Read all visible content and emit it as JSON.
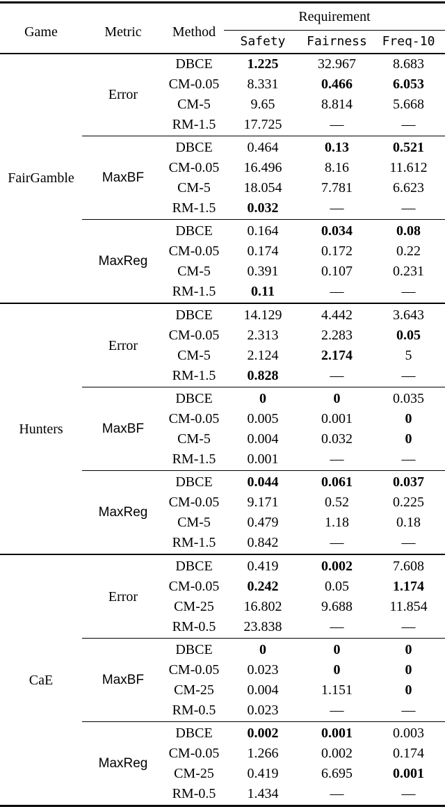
{
  "header": {
    "game": "Game",
    "metric": "Metric",
    "method": "Method",
    "requirement": "Requirement",
    "requirements": [
      "Safety",
      "Fairness",
      "Freq-10"
    ]
  },
  "sections": [
    {
      "game": "FairGamble",
      "blocks": [
        {
          "metric": "Error",
          "metric_font": "serif",
          "rows": [
            {
              "method": "DBCE",
              "values": [
                {
                  "text": "1.225",
                  "bold": true
                },
                {
                  "text": "32.967",
                  "bold": false
                },
                {
                  "text": "8.683",
                  "bold": false
                }
              ]
            },
            {
              "method": "CM-0.05",
              "values": [
                {
                  "text": "8.331",
                  "bold": false
                },
                {
                  "text": "0.466",
                  "bold": true
                },
                {
                  "text": "6.053",
                  "bold": true
                }
              ]
            },
            {
              "method": "CM-5",
              "values": [
                {
                  "text": "9.65",
                  "bold": false
                },
                {
                  "text": "8.814",
                  "bold": false
                },
                {
                  "text": "5.668",
                  "bold": false
                }
              ]
            },
            {
              "method": "RM-1.5",
              "values": [
                {
                  "text": "17.725",
                  "bold": false
                },
                {
                  "text": "—",
                  "bold": false
                },
                {
                  "text": "—",
                  "bold": false
                }
              ]
            }
          ]
        },
        {
          "metric": "MaxBF",
          "metric_font": "sans",
          "rows": [
            {
              "method": "DBCE",
              "values": [
                {
                  "text": "0.464",
                  "bold": false
                },
                {
                  "text": "0.13",
                  "bold": true
                },
                {
                  "text": "0.521",
                  "bold": true
                }
              ]
            },
            {
              "method": "CM-0.05",
              "values": [
                {
                  "text": "16.496",
                  "bold": false
                },
                {
                  "text": "8.16",
                  "bold": false
                },
                {
                  "text": "11.612",
                  "bold": false
                }
              ]
            },
            {
              "method": "CM-5",
              "values": [
                {
                  "text": "18.054",
                  "bold": false
                },
                {
                  "text": "7.781",
                  "bold": false
                },
                {
                  "text": "6.623",
                  "bold": false
                }
              ]
            },
            {
              "method": "RM-1.5",
              "values": [
                {
                  "text": "0.032",
                  "bold": true
                },
                {
                  "text": "—",
                  "bold": false
                },
                {
                  "text": "—",
                  "bold": false
                }
              ]
            }
          ]
        },
        {
          "metric": "MaxReg",
          "metric_font": "sans",
          "rows": [
            {
              "method": "DBCE",
              "values": [
                {
                  "text": "0.164",
                  "bold": false
                },
                {
                  "text": "0.034",
                  "bold": true
                },
                {
                  "text": "0.08",
                  "bold": true
                }
              ]
            },
            {
              "method": "CM-0.05",
              "values": [
                {
                  "text": "0.174",
                  "bold": false
                },
                {
                  "text": "0.172",
                  "bold": false
                },
                {
                  "text": "0.22",
                  "bold": false
                }
              ]
            },
            {
              "method": "CM-5",
              "values": [
                {
                  "text": "0.391",
                  "bold": false
                },
                {
                  "text": "0.107",
                  "bold": false
                },
                {
                  "text": "0.231",
                  "bold": false
                }
              ]
            },
            {
              "method": "RM-1.5",
              "values": [
                {
                  "text": "0.11",
                  "bold": true
                },
                {
                  "text": "—",
                  "bold": false
                },
                {
                  "text": "—",
                  "bold": false
                }
              ]
            }
          ]
        }
      ]
    },
    {
      "game": "Hunters",
      "blocks": [
        {
          "metric": "Error",
          "metric_font": "serif",
          "rows": [
            {
              "method": "DBCE",
              "values": [
                {
                  "text": "14.129",
                  "bold": false
                },
                {
                  "text": "4.442",
                  "bold": false
                },
                {
                  "text": "3.643",
                  "bold": false
                }
              ]
            },
            {
              "method": "CM-0.05",
              "values": [
                {
                  "text": "2.313",
                  "bold": false
                },
                {
                  "text": "2.283",
                  "bold": false
                },
                {
                  "text": "0.05",
                  "bold": true
                }
              ]
            },
            {
              "method": "CM-5",
              "values": [
                {
                  "text": "2.124",
                  "bold": false
                },
                {
                  "text": "2.174",
                  "bold": true
                },
                {
                  "text": "5",
                  "bold": false
                }
              ]
            },
            {
              "method": "RM-1.5",
              "values": [
                {
                  "text": "0.828",
                  "bold": true
                },
                {
                  "text": "—",
                  "bold": false
                },
                {
                  "text": "—",
                  "bold": false
                }
              ]
            }
          ]
        },
        {
          "metric": "MaxBF",
          "metric_font": "sans",
          "rows": [
            {
              "method": "DBCE",
              "values": [
                {
                  "text": "0",
                  "bold": true
                },
                {
                  "text": "0",
                  "bold": true
                },
                {
                  "text": "0.035",
                  "bold": false
                }
              ]
            },
            {
              "method": "CM-0.05",
              "values": [
                {
                  "text": "0.005",
                  "bold": false
                },
                {
                  "text": "0.001",
                  "bold": false
                },
                {
                  "text": "0",
                  "bold": true
                }
              ]
            },
            {
              "method": "CM-5",
              "values": [
                {
                  "text": "0.004",
                  "bold": false
                },
                {
                  "text": "0.032",
                  "bold": false
                },
                {
                  "text": "0",
                  "bold": true
                }
              ]
            },
            {
              "method": "RM-1.5",
              "values": [
                {
                  "text": "0.001",
                  "bold": false
                },
                {
                  "text": "—",
                  "bold": false
                },
                {
                  "text": "—",
                  "bold": false
                }
              ]
            }
          ]
        },
        {
          "metric": "MaxReg",
          "metric_font": "sans",
          "rows": [
            {
              "method": "DBCE",
              "values": [
                {
                  "text": "0.044",
                  "bold": true
                },
                {
                  "text": "0.061",
                  "bold": true
                },
                {
                  "text": "0.037",
                  "bold": true
                }
              ]
            },
            {
              "method": "CM-0.05",
              "values": [
                {
                  "text": "9.171",
                  "bold": false
                },
                {
                  "text": "0.52",
                  "bold": false
                },
                {
                  "text": "0.225",
                  "bold": false
                }
              ]
            },
            {
              "method": "CM-5",
              "values": [
                {
                  "text": "0.479",
                  "bold": false
                },
                {
                  "text": "1.18",
                  "bold": false
                },
                {
                  "text": "0.18",
                  "bold": false
                }
              ]
            },
            {
              "method": "RM-1.5",
              "values": [
                {
                  "text": "0.842",
                  "bold": false
                },
                {
                  "text": "—",
                  "bold": false
                },
                {
                  "text": "—",
                  "bold": false
                }
              ]
            }
          ]
        }
      ]
    },
    {
      "game": "CaE",
      "blocks": [
        {
          "metric": "Error",
          "metric_font": "serif",
          "rows": [
            {
              "method": "DBCE",
              "values": [
                {
                  "text": "0.419",
                  "bold": false
                },
                {
                  "text": "0.002",
                  "bold": true
                },
                {
                  "text": "7.608",
                  "bold": false
                }
              ]
            },
            {
              "method": "CM-0.05",
              "values": [
                {
                  "text": "0.242",
                  "bold": true
                },
                {
                  "text": "0.05",
                  "bold": false
                },
                {
                  "text": "1.174",
                  "bold": true
                }
              ]
            },
            {
              "method": "CM-25",
              "values": [
                {
                  "text": "16.802",
                  "bold": false
                },
                {
                  "text": "9.688",
                  "bold": false
                },
                {
                  "text": "11.854",
                  "bold": false
                }
              ]
            },
            {
              "method": "RM-0.5",
              "values": [
                {
                  "text": "23.838",
                  "bold": false
                },
                {
                  "text": "—",
                  "bold": false
                },
                {
                  "text": "—",
                  "bold": false
                }
              ]
            }
          ]
        },
        {
          "metric": "MaxBF",
          "metric_font": "sans",
          "rows": [
            {
              "method": "DBCE",
              "values": [
                {
                  "text": "0",
                  "bold": true
                },
                {
                  "text": "0",
                  "bold": true
                },
                {
                  "text": "0",
                  "bold": true
                }
              ]
            },
            {
              "method": "CM-0.05",
              "values": [
                {
                  "text": "0.023",
                  "bold": false
                },
                {
                  "text": "0",
                  "bold": true
                },
                {
                  "text": "0",
                  "bold": true
                }
              ]
            },
            {
              "method": "CM-25",
              "values": [
                {
                  "text": "0.004",
                  "bold": false
                },
                {
                  "text": "1.151",
                  "bold": false
                },
                {
                  "text": "0",
                  "bold": true
                }
              ]
            },
            {
              "method": "RM-0.5",
              "values": [
                {
                  "text": "0.023",
                  "bold": false
                },
                {
                  "text": "—",
                  "bold": false
                },
                {
                  "text": "—",
                  "bold": false
                }
              ]
            }
          ]
        },
        {
          "metric": "MaxReg",
          "metric_font": "sans",
          "rows": [
            {
              "method": "DBCE",
              "values": [
                {
                  "text": "0.002",
                  "bold": true
                },
                {
                  "text": "0.001",
                  "bold": true
                },
                {
                  "text": "0.003",
                  "bold": false
                }
              ]
            },
            {
              "method": "CM-0.05",
              "values": [
                {
                  "text": "1.266",
                  "bold": false
                },
                {
                  "text": "0.002",
                  "bold": false
                },
                {
                  "text": "0.174",
                  "bold": false
                }
              ]
            },
            {
              "method": "CM-25",
              "values": [
                {
                  "text": "0.419",
                  "bold": false
                },
                {
                  "text": "6.695",
                  "bold": false
                },
                {
                  "text": "0.001",
                  "bold": true
                }
              ]
            },
            {
              "method": "RM-0.5",
              "values": [
                {
                  "text": "1.434",
                  "bold": false
                },
                {
                  "text": "—",
                  "bold": false
                },
                {
                  "text": "—",
                  "bold": false
                }
              ]
            }
          ]
        }
      ]
    }
  ]
}
